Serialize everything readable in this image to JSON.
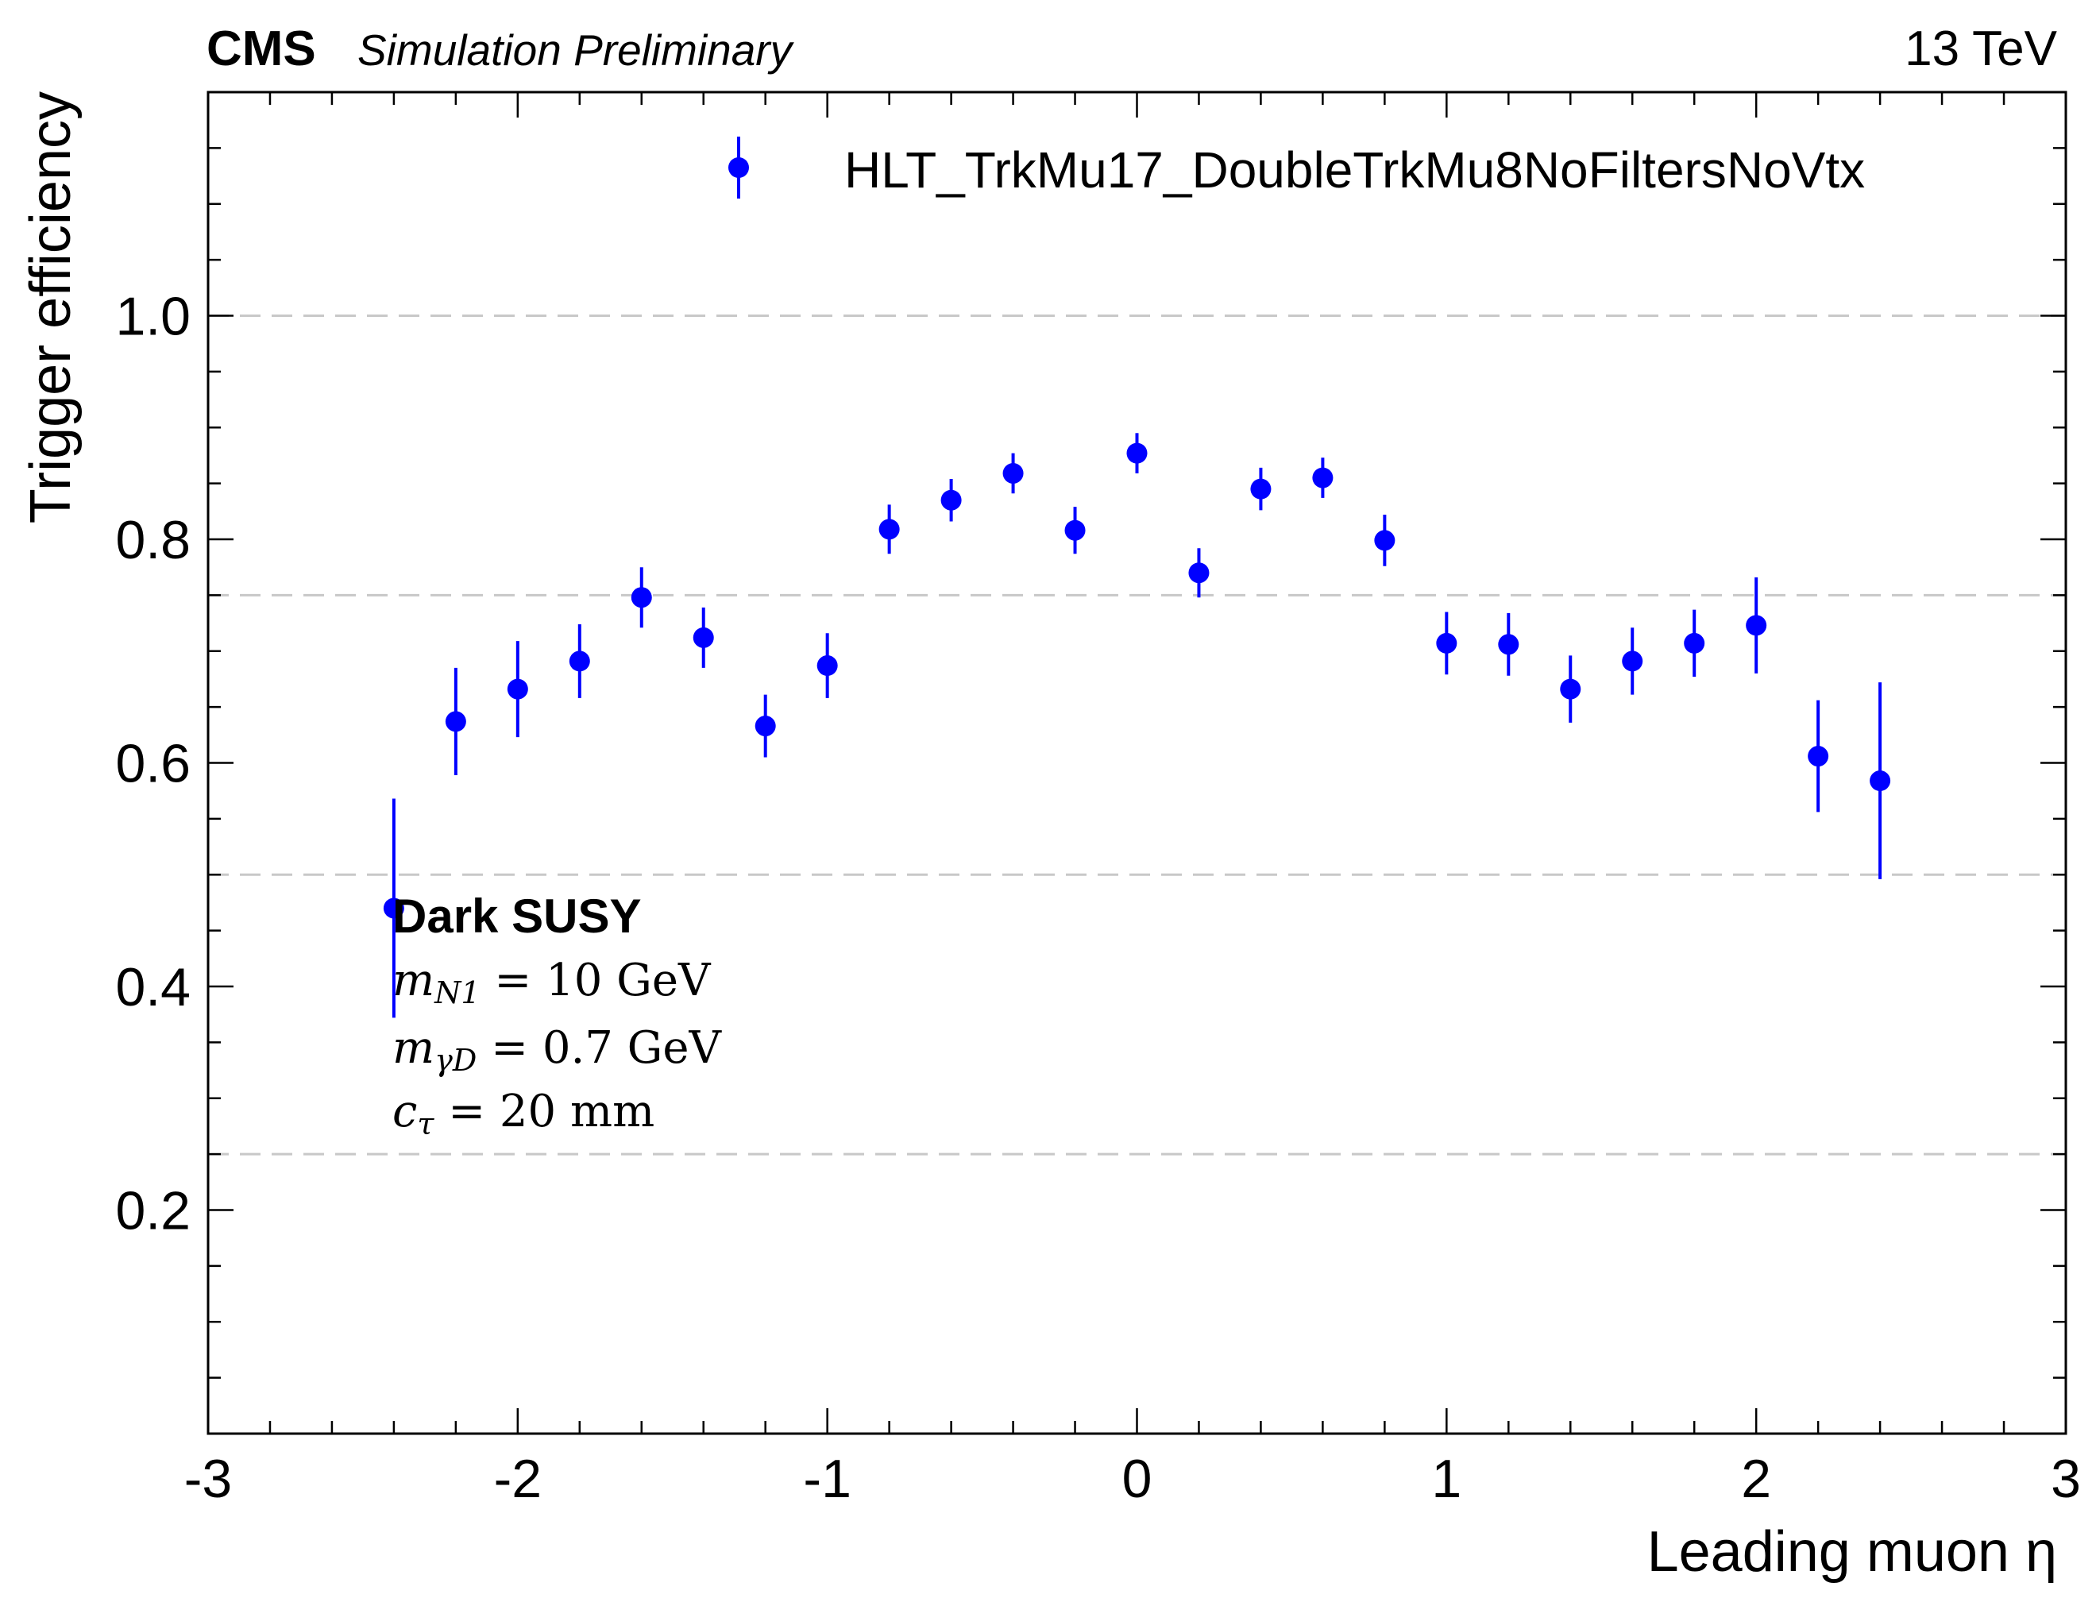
{
  "header": {
    "experiment": "CMS",
    "status": "Simulation Preliminary",
    "energy": "13 TeV"
  },
  "annotation": {
    "model": "Dark SUSY",
    "line1": {
      "symbol": "m",
      "sub": "N1",
      "rest": " = 10 GeV"
    },
    "line2": {
      "symbol": "m",
      "sub": "γD",
      "rest": " = 0.7 GeV"
    },
    "line3": {
      "symbol": "c",
      "sub": "τ",
      "rest": " = 20 mm"
    }
  },
  "chart_data": {
    "type": "scatter",
    "xlabel": "Leading muon η",
    "ylabel": "Trigger efficiency",
    "xlim": [
      -3,
      3
    ],
    "ylim": [
      0,
      1.2
    ],
    "x_ticks": [
      -3,
      -2,
      -1,
      0,
      1,
      2,
      3
    ],
    "x_tick_labels": [
      "-3",
      "-2",
      "-1",
      "0",
      "1",
      "2",
      "3"
    ],
    "y_ticks": [
      0.2,
      0.4,
      0.6,
      0.8,
      1.0
    ],
    "y_tick_labels": [
      "0.2",
      "0.4",
      "0.6",
      "0.8",
      "1.0"
    ],
    "grid": {
      "axis": "y",
      "style": "dashed",
      "values": [
        0.25,
        0.5,
        0.75,
        1.0
      ]
    },
    "legend_position": "top-right",
    "series": [
      {
        "name": "HLT_TrkMu17_DoubleTrkMu8NoFiltersNoVtx",
        "color": "#0000ff",
        "x": [
          -2.4,
          -2.2,
          -2.0,
          -1.8,
          -1.6,
          -1.4,
          -1.2,
          -1.0,
          -0.8,
          -0.6,
          -0.4,
          -0.2,
          0.0,
          0.2,
          0.4,
          0.6,
          0.8,
          1.0,
          1.2,
          1.4,
          1.6,
          1.8,
          2.0,
          2.2,
          2.4
        ],
        "y": [
          0.47,
          0.637,
          0.666,
          0.691,
          0.748,
          0.712,
          0.633,
          0.687,
          0.809,
          0.835,
          0.859,
          0.808,
          0.877,
          0.77,
          0.845,
          0.855,
          0.799,
          0.707,
          0.706,
          0.666,
          0.691,
          0.707,
          0.723,
          0.606,
          0.584
        ],
        "yerr": [
          0.098,
          0.048,
          0.043,
          0.033,
          0.027,
          0.027,
          0.028,
          0.029,
          0.022,
          0.019,
          0.018,
          0.021,
          0.018,
          0.022,
          0.019,
          0.018,
          0.023,
          0.028,
          0.028,
          0.03,
          0.03,
          0.03,
          0.043,
          0.05,
          0.088
        ]
      }
    ]
  }
}
